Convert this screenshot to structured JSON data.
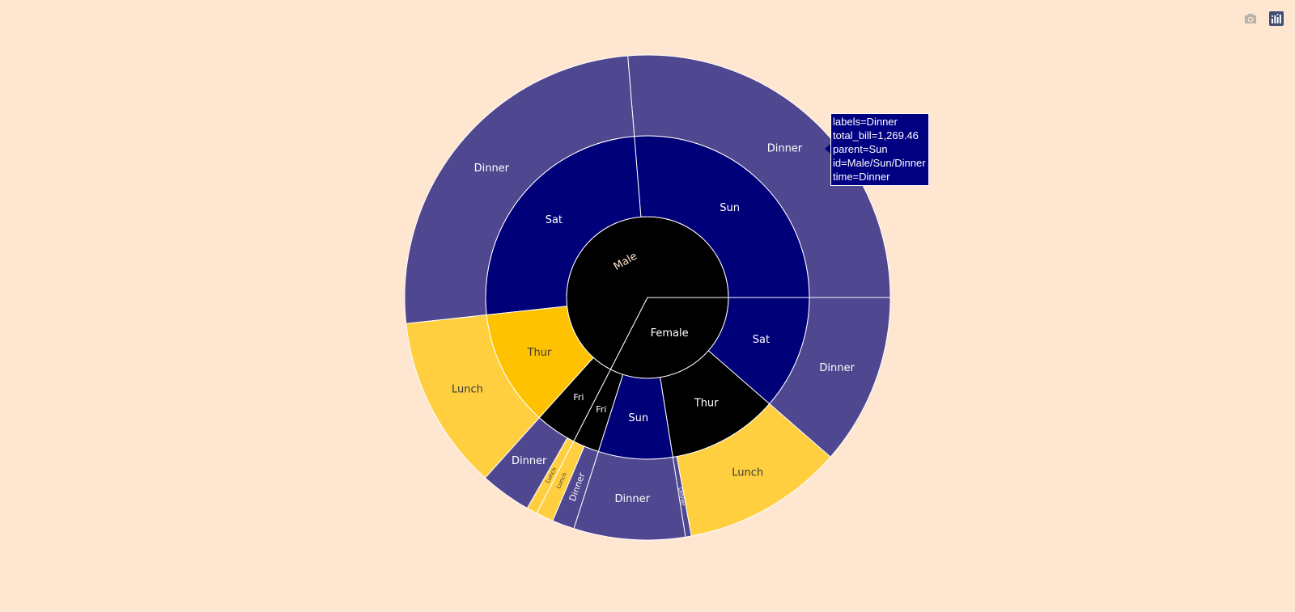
{
  "modebar": {
    "camera_icon": "camera-icon",
    "plotly_icon": "plotly-logo-icon"
  },
  "tooltip": {
    "line1": "labels=Dinner",
    "line2": "total_bill=1,269.46",
    "line3": "parent=Sun",
    "line4": "id=Male/Sun/Dinner",
    "line5": "time=Dinner"
  },
  "colors": {
    "background": "#ffe6d1",
    "Dinner": "#4f478f",
    "Lunch": "#ffcf40",
    "Sun": "#000078",
    "Sat": "#000078",
    "Thur": "#ffc200",
    "Fri": "#000000",
    "Male": "#000000",
    "Female": "#000000",
    "FemaleThur": "#000000",
    "tooltip": "#000080"
  },
  "chart_data": {
    "type": "sunburst",
    "value_field": "total_bill",
    "levels": [
      "sex",
      "day",
      "time"
    ],
    "nodes": [
      {
        "id": "Male",
        "label": "Male",
        "parent": "",
        "value": 3256.82
      },
      {
        "id": "Female",
        "label": "Female",
        "parent": "",
        "value": 1570.95
      },
      {
        "id": "Male/Sun",
        "label": "Sun",
        "parent": "Male",
        "value": 1269.46
      },
      {
        "id": "Male/Sat",
        "label": "Sat",
        "parent": "Male",
        "value": 1227.35
      },
      {
        "id": "Male/Thur",
        "label": "Thur",
        "parent": "Male",
        "value": 561.44
      },
      {
        "id": "Male/Fri",
        "label": "Fri",
        "parent": "Male",
        "value": 198.57
      },
      {
        "id": "Female/Fri",
        "label": "Fri",
        "parent": "Female",
        "value": 127.31
      },
      {
        "id": "Female/Sun",
        "label": "Sun",
        "parent": "Female",
        "value": 357.7
      },
      {
        "id": "Female/Thur",
        "label": "Thur",
        "parent": "Female",
        "value": 534.89
      },
      {
        "id": "Female/Sat",
        "label": "Sat",
        "parent": "Female",
        "value": 551.05
      },
      {
        "id": "Male/Sun/Dinner",
        "label": "Dinner",
        "parent": "Male/Sun",
        "value": 1269.46
      },
      {
        "id": "Male/Sat/Dinner",
        "label": "Dinner",
        "parent": "Male/Sat",
        "value": 1227.35
      },
      {
        "id": "Male/Thur/Lunch",
        "label": "Lunch",
        "parent": "Male/Thur",
        "value": 561.44
      },
      {
        "id": "Male/Fri/Dinner",
        "label": "Dinner",
        "parent": "Male/Fri",
        "value": 164.41
      },
      {
        "id": "Male/Fri/Lunch",
        "label": "Lunch",
        "parent": "Male/Fri",
        "value": 34.16
      },
      {
        "id": "Female/Fri/Lunch",
        "label": "Lunch",
        "parent": "Female/Fri",
        "value": 55.76
      },
      {
        "id": "Female/Fri/Dinner",
        "label": "Dinner",
        "parent": "Female/Fri",
        "value": 71.55
      },
      {
        "id": "Female/Sun/Dinner",
        "label": "Dinner",
        "parent": "Female/Sun",
        "value": 357.7
      },
      {
        "id": "Female/Thur/Dinner",
        "label": "Dinner",
        "parent": "Female/Thur",
        "value": 18.78
      },
      {
        "id": "Female/Thur/Lunch",
        "label": "Lunch",
        "parent": "Female/Thur",
        "value": 516.11
      },
      {
        "id": "Female/Sat/Dinner",
        "label": "Dinner",
        "parent": "Female/Sat",
        "value": 551.05
      }
    ]
  }
}
